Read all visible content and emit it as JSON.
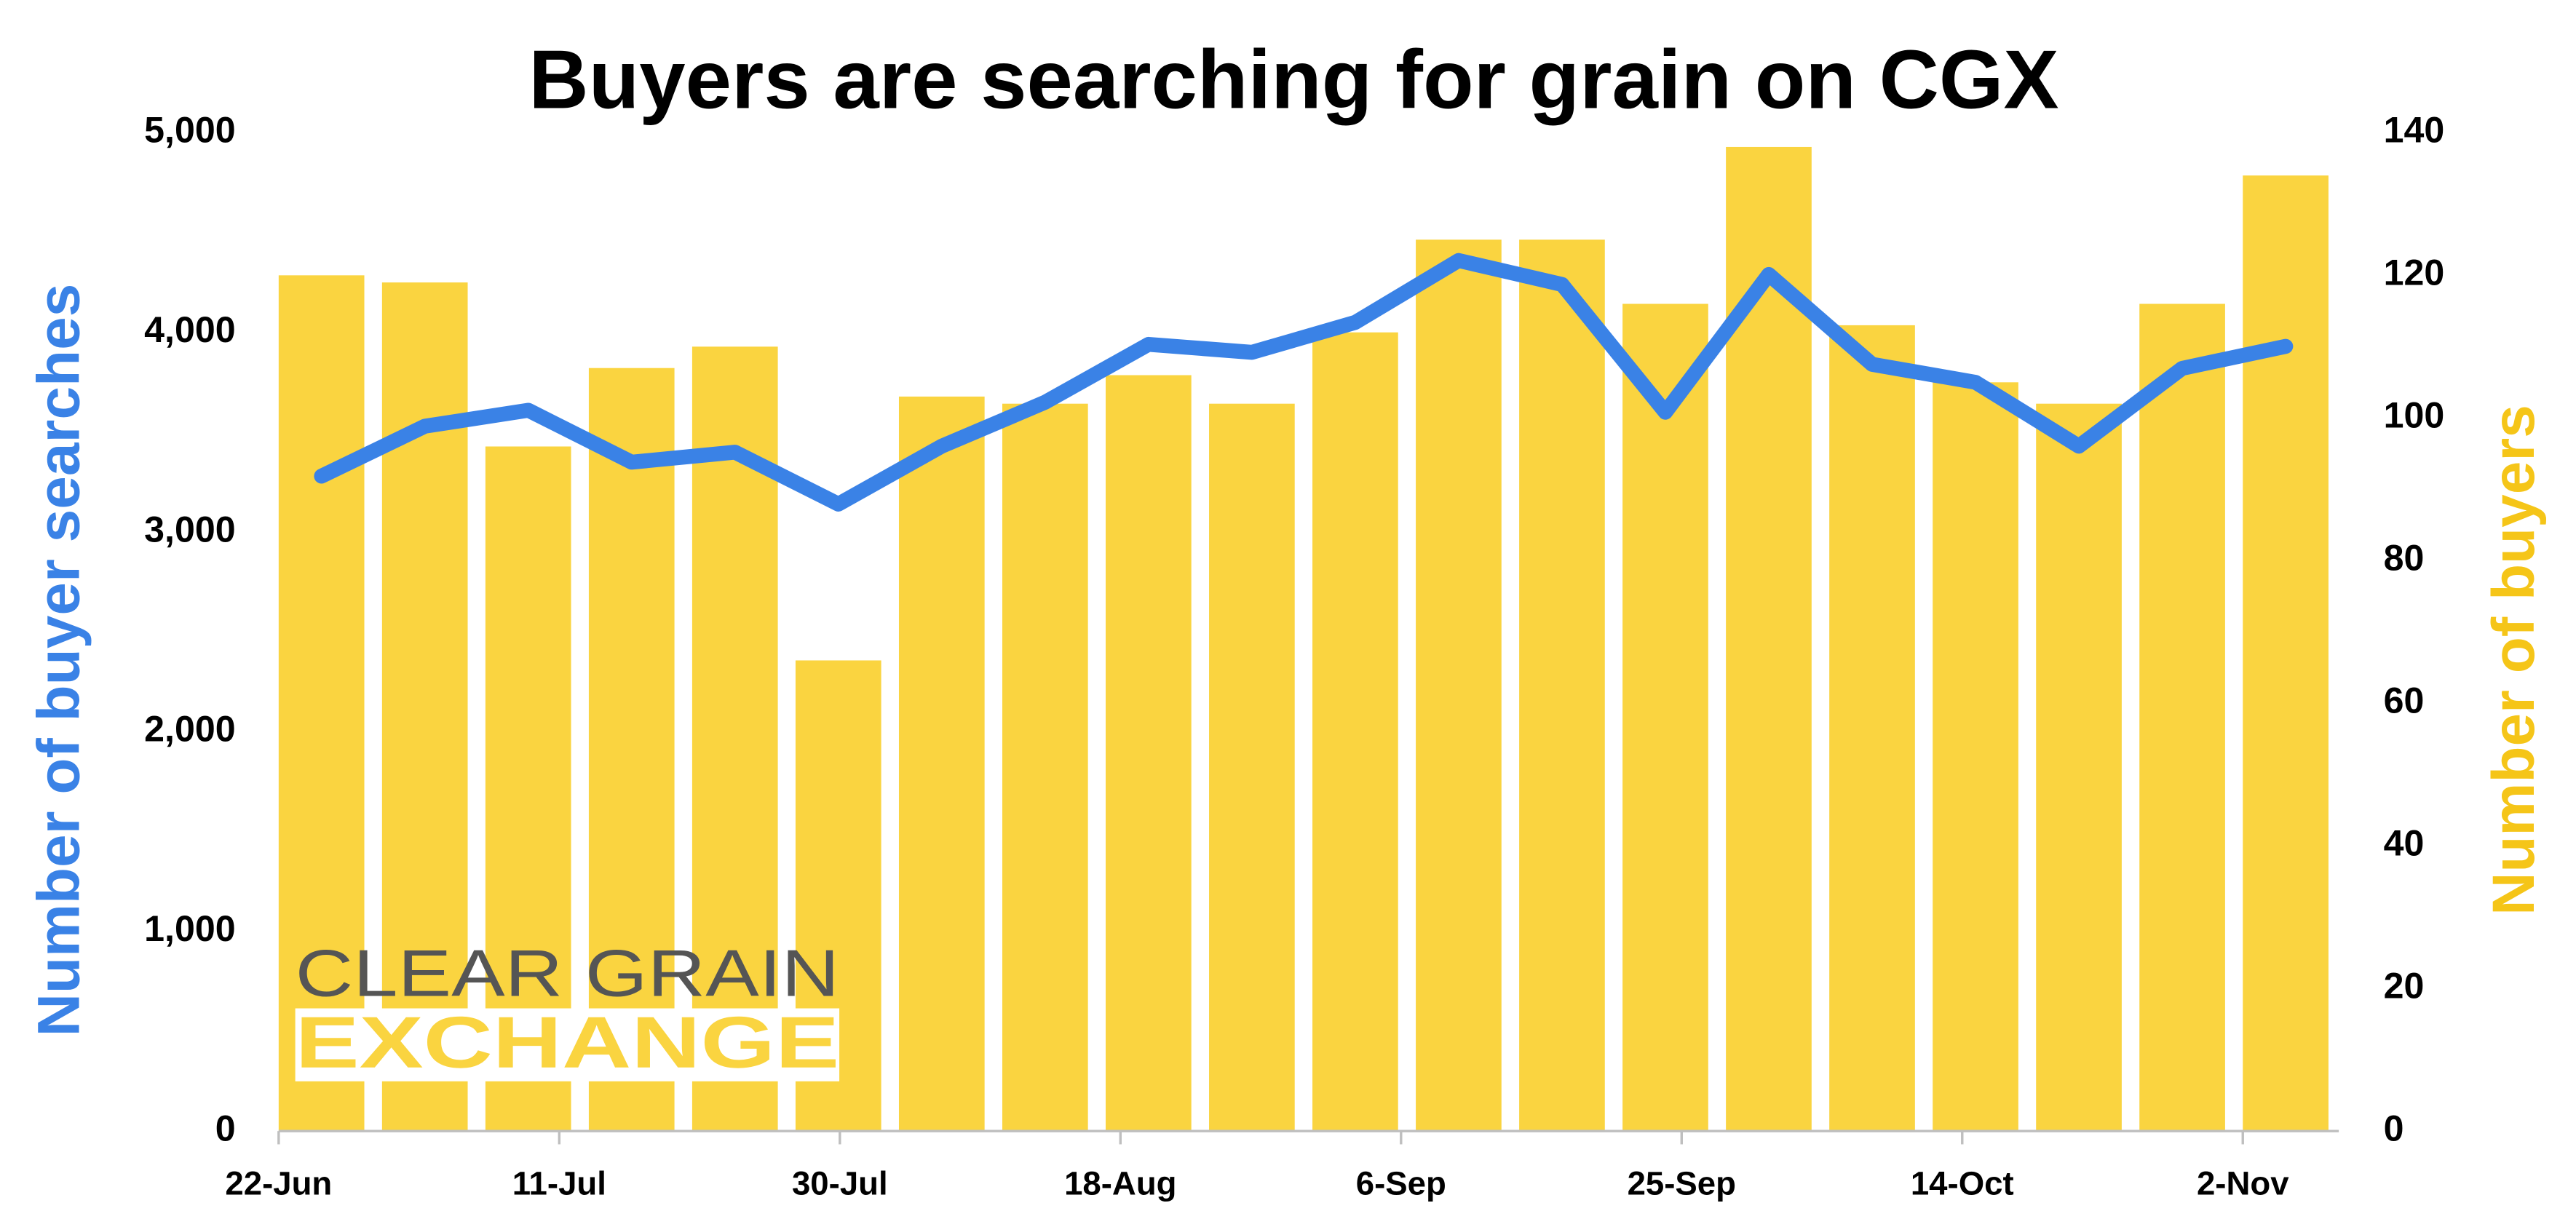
{
  "chart_data": {
    "type": "bar-line",
    "title": "Buyers are searching for grain on CGX",
    "y_label": "Number of buyer searches",
    "y2_label": "Number of buyers",
    "logo": [
      "CLEAR GRAIN",
      "EXCHANGE"
    ],
    "x": [
      0,
      7,
      14,
      21,
      28,
      35,
      42,
      49,
      56,
      63,
      70,
      77,
      84,
      91,
      98,
      105,
      112,
      119,
      126,
      133
    ],
    "xlim": [
      0,
      139.5
    ],
    "xticks": [
      {
        "value": 0,
        "label": "22-Jun"
      },
      {
        "value": 19,
        "label": "11-Jul"
      },
      {
        "value": 38,
        "label": "30-Jul"
      },
      {
        "value": 57,
        "label": "18-Aug"
      },
      {
        "value": 76,
        "label": "6-Sep"
      },
      {
        "value": 95,
        "label": "25-Sep"
      },
      {
        "value": 114,
        "label": "14-Oct"
      },
      {
        "value": 133,
        "label": "2-Nov"
      }
    ],
    "ylim": [
      0,
      5000
    ],
    "yticks": [
      {
        "value": 0,
        "label": "0"
      },
      {
        "value": 1000,
        "label": "1,000"
      },
      {
        "value": 2000,
        "label": "2,000"
      },
      {
        "value": 3000,
        "label": "3,000"
      },
      {
        "value": 4000,
        "label": "4,000"
      },
      {
        "value": 5000,
        "label": "5,000"
      }
    ],
    "y2lim": [
      0,
      140
    ],
    "y2ticks": [
      0,
      20,
      40,
      60,
      80,
      100,
      120,
      140
    ],
    "series": [
      {
        "name": "Number of buyers",
        "type": "bar",
        "axis": "y2",
        "color": "#fad440",
        "values": [
          120,
          119,
          96,
          107,
          110,
          66,
          103,
          102,
          106,
          102,
          112,
          125,
          125,
          116,
          138,
          113,
          105,
          102,
          116,
          134
        ]
      },
      {
        "name": "Number of buyer searches",
        "type": "line",
        "axis": "y",
        "color": "#3a82e6",
        "values": [
          3280,
          3530,
          3610,
          3350,
          3400,
          3140,
          3430,
          3650,
          3940,
          3900,
          4050,
          4360,
          4240,
          3600,
          4290,
          3840,
          3750,
          3430,
          3820,
          3930
        ]
      }
    ]
  }
}
